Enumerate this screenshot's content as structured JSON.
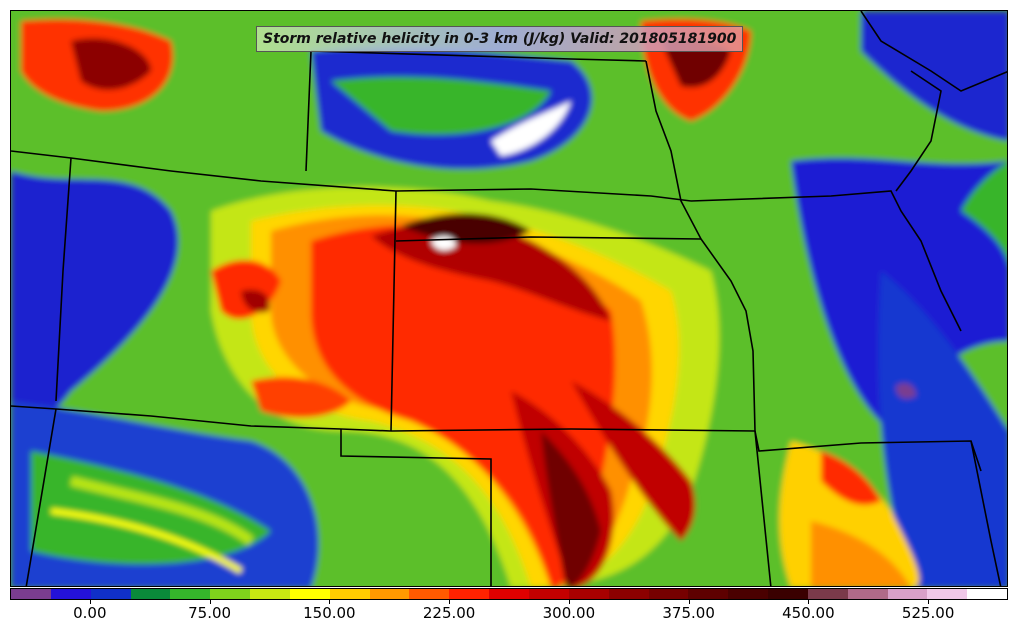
{
  "map": {
    "title": "Storm relative helicity in 0-3 km (J/kg) Valid: 201805181900",
    "variable": "Storm relative helicity 0-3 km",
    "units": "J/kg",
    "valid_time": "201805181900",
    "region_shown": "Central United States (Plains)",
    "colors": {
      "background_field": "#5bbf2a",
      "boundary_lines": "#000000"
    }
  },
  "colorbar": {
    "colors": [
      "#7a3d8f",
      "#2412d9",
      "#1030c8",
      "#0a8a3a",
      "#35b52b",
      "#7fd21c",
      "#c8e812",
      "#ffff00",
      "#ffcc00",
      "#ff9900",
      "#ff5a00",
      "#ff2200",
      "#e00000",
      "#c40000",
      "#a80000",
      "#8c0000",
      "#760000",
      "#5e0000",
      "#4a0000",
      "#3a0000",
      "#7a3a4a",
      "#b06a88",
      "#d8a0c8",
      "#f0c8e8",
      "#ffffff"
    ],
    "tick_labels": [
      "0.00",
      "75.00",
      "150.00",
      "225.00",
      "300.00",
      "375.00",
      "450.00",
      "525.00"
    ],
    "tick_values": [
      0,
      75,
      150,
      225,
      300,
      375,
      450,
      525
    ],
    "range": [
      -50,
      575
    ]
  }
}
